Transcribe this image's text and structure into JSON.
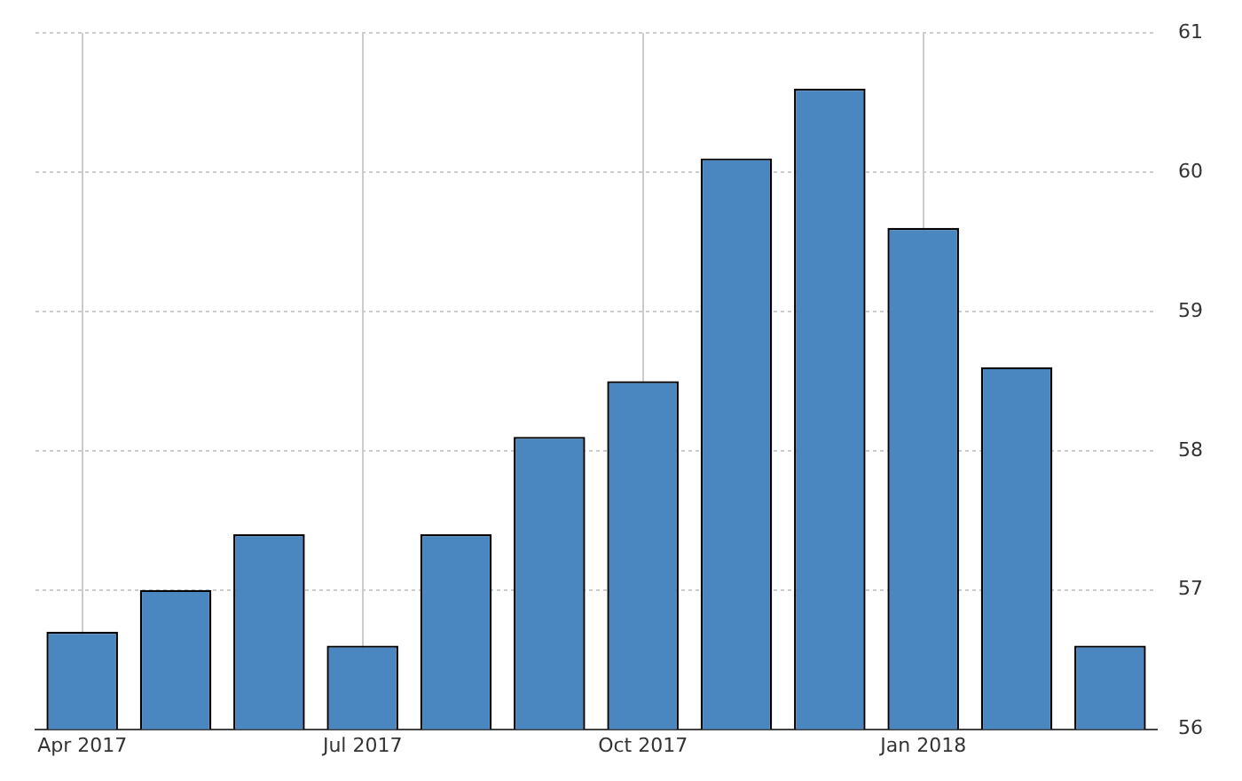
{
  "chart_data": {
    "type": "bar",
    "categories": [
      "Apr 2017",
      null,
      null,
      "Jul 2017",
      null,
      null,
      "Oct 2017",
      null,
      null,
      "Jan 2018",
      null,
      null
    ],
    "values": [
      56.7,
      57.0,
      57.4,
      56.6,
      57.4,
      58.1,
      58.5,
      60.1,
      60.6,
      59.6,
      58.6,
      56.6
    ],
    "color": "#4a87c0",
    "ylim": [
      56,
      61
    ],
    "yticks": [
      56,
      57,
      58,
      59,
      60,
      61
    ],
    "grid": true,
    "legend": false
  }
}
